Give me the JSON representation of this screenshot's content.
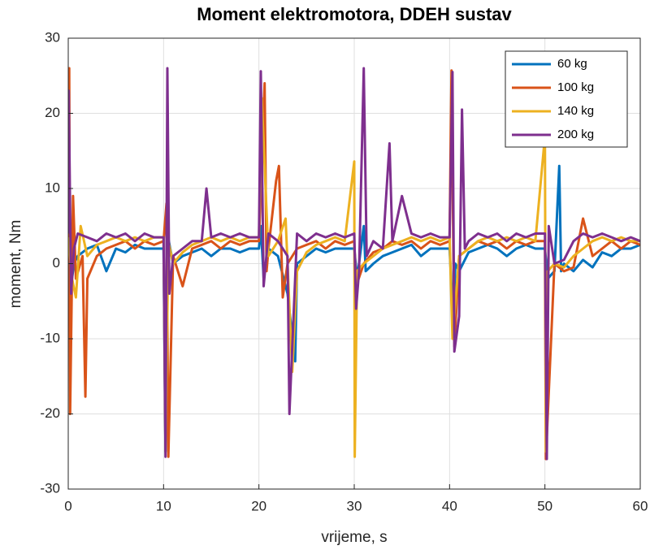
{
  "chart_data": {
    "type": "line",
    "title": "Moment elektromotora, DDEH sustav",
    "xlabel": "vrijeme, s",
    "ylabel": "moment, Nm",
    "xlim": [
      0,
      60
    ],
    "xticks": [
      0,
      10,
      20,
      30,
      40,
      50,
      60
    ],
    "ylim": [
      -30,
      30
    ],
    "yticks": [
      -30,
      -20,
      -10,
      0,
      10,
      20,
      30
    ],
    "grid": true,
    "legend": "top-right",
    "series": [
      {
        "name": "60 kg",
        "color": "#0072bd",
        "x": [
          0,
          0.3,
          0.6,
          1,
          2,
          3,
          4,
          5,
          6,
          7,
          8,
          9,
          10,
          10.2,
          10.4,
          11,
          12,
          13,
          14,
          15,
          16,
          17,
          18,
          19,
          20,
          20.2,
          20.5,
          21,
          22,
          23,
          23.8,
          24,
          25,
          26,
          27,
          28,
          29,
          30,
          30.3,
          31,
          31.2,
          32,
          33,
          34,
          35,
          36,
          37,
          38,
          39,
          40,
          40.4,
          40.6,
          41,
          42,
          43,
          44,
          45,
          46,
          47,
          48,
          49,
          50,
          50.3,
          51,
          51.5,
          51.7,
          52,
          53,
          54,
          55,
          56,
          57,
          58,
          59,
          60
        ],
        "values": [
          2,
          -3,
          0,
          1,
          2,
          2.5,
          -1,
          2,
          1.5,
          2.5,
          2,
          2,
          2,
          -25,
          4,
          0,
          1,
          1.5,
          2,
          1,
          2,
          2,
          1.5,
          2,
          2,
          5,
          -2,
          2,
          1,
          -4,
          -13,
          0,
          1,
          2,
          1.5,
          2,
          2,
          2,
          -2,
          5,
          -1,
          0,
          1,
          1.5,
          2,
          2.5,
          1,
          2,
          2,
          2,
          -8,
          0,
          -1,
          1.5,
          2,
          2.5,
          2,
          1,
          2,
          2.5,
          2,
          2,
          -2,
          -1,
          13,
          -1,
          0,
          -1,
          0.5,
          -0.5,
          1.5,
          1,
          2,
          2,
          2.5
        ]
      },
      {
        "name": "100 kg",
        "color": "#d95319",
        "x": [
          0,
          0.1,
          0.2,
          0.5,
          0.8,
          1.5,
          1.8,
          2,
          3,
          4,
          5,
          6,
          7,
          8,
          9,
          10,
          10.3,
          10.5,
          11,
          12,
          13,
          14,
          15,
          16,
          17,
          18,
          19,
          20,
          20.6,
          20.8,
          21,
          21.8,
          22.1,
          22.5,
          23,
          24,
          25,
          26,
          27,
          28,
          29,
          30,
          30.2,
          31,
          32,
          33,
          34,
          35,
          36,
          37,
          38,
          39,
          40,
          40.2,
          40.5,
          41,
          42,
          43,
          44,
          45,
          46,
          47,
          48,
          49,
          50,
          50.1,
          51,
          52,
          53,
          54,
          55,
          56,
          57,
          58,
          59,
          60
        ],
        "values": [
          3,
          26,
          -20,
          9,
          -2,
          1,
          -17.7,
          -2,
          1,
          2,
          2.5,
          3,
          2,
          3,
          2.5,
          3,
          8,
          -25.7,
          1,
          -3,
          2,
          2.5,
          3,
          2,
          3,
          2.5,
          3,
          3,
          24,
          -1,
          2,
          11,
          13,
          -4.5,
          0,
          2,
          2.5,
          3,
          2,
          3,
          2.5,
          3,
          -3,
          0,
          1.5,
          2,
          3,
          2.5,
          3,
          2,
          3,
          2.5,
          3,
          25.7,
          -11,
          1,
          2,
          3,
          2.5,
          3,
          2,
          3,
          2.5,
          3,
          3,
          -26,
          0,
          -1,
          -0.5,
          6,
          1,
          2,
          3,
          2,
          3,
          2.5
        ]
      },
      {
        "name": "140 kg",
        "color": "#edb120",
        "x": [
          0,
          0.4,
          0.8,
          1.3,
          2,
          3,
          4,
          5,
          6,
          7,
          8,
          9,
          10,
          10.2,
          10.5,
          11,
          12,
          13,
          14,
          15,
          16,
          17,
          18,
          19,
          20,
          20.3,
          21,
          22,
          22.8,
          23.5,
          24,
          25,
          26,
          27,
          28,
          29,
          30,
          30.05,
          30.3,
          31,
          32,
          33,
          34,
          35,
          36,
          37,
          38,
          39,
          40,
          40.3,
          41,
          42,
          43,
          44,
          45,
          46,
          47,
          48,
          49,
          50,
          50.1,
          50.3,
          51,
          52,
          53,
          54,
          55,
          56,
          57,
          58,
          59,
          60
        ],
        "values": [
          3.5,
          -2,
          -4.5,
          5,
          1,
          2.5,
          3,
          3.5,
          3,
          3.5,
          3,
          3.5,
          3.5,
          -25,
          3,
          0,
          1.5,
          2.5,
          3,
          3.5,
          3,
          3.5,
          3,
          3.5,
          3.5,
          22,
          1,
          3,
          6,
          -14.4,
          -1,
          1.5,
          2.5,
          3,
          3.5,
          3,
          13.6,
          -25.7,
          -1,
          0,
          1,
          2,
          2.5,
          3,
          3.5,
          3,
          3.5,
          3,
          3.5,
          -10,
          1,
          2,
          3,
          3.5,
          3,
          3.5,
          3,
          3.5,
          3,
          17,
          -25,
          -1,
          0,
          -0.5,
          1,
          2,
          3,
          3.5,
          3,
          3.5,
          3,
          3
        ]
      },
      {
        "name": "200 kg",
        "color": "#7e2f8e",
        "x": [
          0,
          0.05,
          0.3,
          0.6,
          1,
          2,
          3,
          4,
          5,
          6,
          7,
          8,
          9,
          10,
          10.2,
          10.4,
          10.6,
          11,
          12,
          13,
          14,
          14.5,
          15,
          16,
          17,
          18,
          19,
          20,
          20.2,
          20.5,
          21,
          22,
          23,
          23.2,
          24,
          25,
          26,
          27,
          28,
          29,
          30,
          30.2,
          30.5,
          31,
          31.3,
          32,
          33,
          33.7,
          34,
          35,
          36,
          37,
          38,
          39,
          40,
          40.3,
          40.5,
          41,
          41.3,
          41.6,
          42,
          43,
          44,
          45,
          46,
          47,
          48,
          49,
          50,
          50.2,
          50.4,
          51,
          52,
          53,
          54,
          55,
          56,
          57,
          58,
          59,
          60
        ],
        "values": [
          4,
          23,
          -4,
          2,
          4,
          3.5,
          3,
          4,
          3.5,
          4,
          3,
          4,
          3.5,
          3.5,
          -25.7,
          26,
          -4,
          1,
          2,
          3,
          3,
          10,
          3.5,
          4,
          3.5,
          4,
          3.5,
          3.5,
          25.6,
          -3,
          4,
          3,
          1,
          -20,
          4,
          3,
          4,
          3.5,
          4,
          3.5,
          4,
          -6,
          -1,
          26,
          1,
          3,
          2,
          16,
          3,
          9,
          4,
          3.5,
          4,
          3.5,
          3.5,
          25.5,
          -11.7,
          -7,
          20.5,
          2,
          3,
          4,
          3.5,
          4,
          3,
          4,
          3.5,
          4,
          4,
          -26,
          5,
          0,
          0.5,
          3,
          4,
          3.5,
          4,
          3.5,
          3,
          3.5,
          3
        ]
      }
    ]
  }
}
